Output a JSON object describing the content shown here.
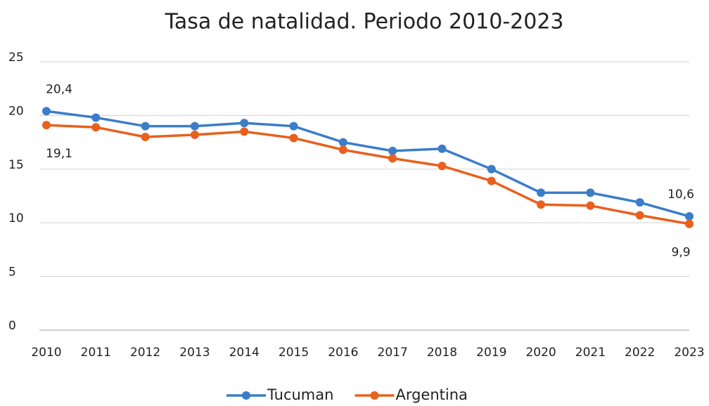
{
  "chart_data": {
    "type": "line",
    "title": "Tasa de natalidad. Periodo 2010-2023",
    "categories": [
      "2010",
      "2011",
      "2012",
      "2013",
      "2014",
      "2015",
      "2016",
      "2017",
      "2018",
      "2019",
      "2020",
      "2021",
      "2022",
      "2023"
    ],
    "series": [
      {
        "name": "Tucuman",
        "color": "#3b7dc8",
        "values": [
          20.4,
          19.8,
          19.0,
          19.0,
          19.3,
          19.0,
          17.5,
          16.7,
          16.9,
          15.0,
          12.8,
          12.8,
          11.9,
          10.6
        ],
        "value_labels": [
          "20,4",
          null,
          null,
          null,
          null,
          null,
          null,
          null,
          null,
          null,
          null,
          null,
          null,
          "10,6"
        ]
      },
      {
        "name": "Argentina",
        "color": "#e8601c",
        "values": [
          19.1,
          18.9,
          18.0,
          18.2,
          18.5,
          17.9,
          16.8,
          16.0,
          15.3,
          13.9,
          11.7,
          11.6,
          10.7,
          9.9
        ],
        "value_labels": [
          "19,1",
          null,
          null,
          null,
          null,
          null,
          null,
          null,
          null,
          null,
          null,
          null,
          null,
          "9,9"
        ]
      }
    ],
    "ylim": [
      0,
      25
    ],
    "yticks": [
      0,
      5,
      10,
      15,
      20,
      25
    ],
    "grid": true,
    "legend": "bottom"
  }
}
